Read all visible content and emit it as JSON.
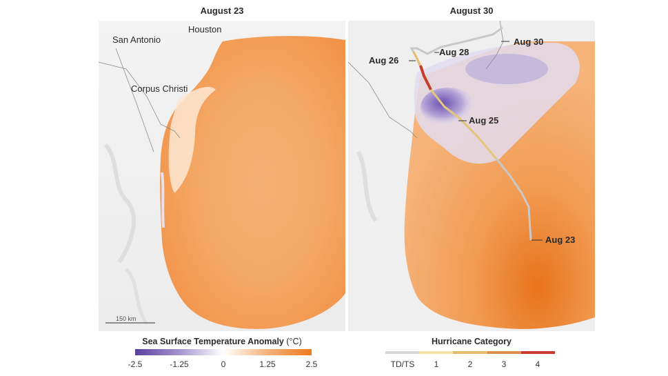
{
  "panels": {
    "left": {
      "title": "August 23",
      "cities": {
        "houston": "Houston",
        "san_antonio": "San Antonio",
        "corpus_christi": "Corpus Christi"
      },
      "scale_bar": "150 km"
    },
    "right": {
      "title": "August 30",
      "track_labels": {
        "aug26": "Aug 26",
        "aug28": "Aug 28",
        "aug30": "Aug 30",
        "aug25": "Aug 25",
        "aug23": "Aug 23"
      }
    }
  },
  "legend_sst": {
    "title": "Sea Surface Temperature Anomaly",
    "unit": "(°C)",
    "ticks": [
      "-2.5",
      "-1.25",
      "0",
      "1.25",
      "2.5"
    ],
    "colors": [
      "#5b3fa0",
      "#ffffff",
      "#ee7a1c"
    ]
  },
  "legend_hurricane": {
    "title": "Hurricane Category",
    "ticks": [
      "TD/TS",
      "1",
      "2",
      "3",
      "4"
    ],
    "colors": [
      "#d8d8d8",
      "#f2e1a2",
      "#e9bc6c",
      "#dd8e4a",
      "#c63b2a"
    ]
  }
}
